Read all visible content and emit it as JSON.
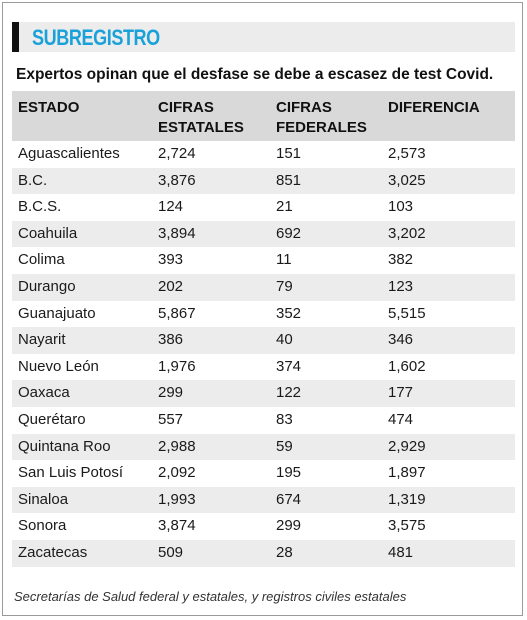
{
  "banner": {
    "title": "SUBREGISTRO"
  },
  "headline": "Expertos opinan que el desfase se debe a escasez de test Covid.",
  "table": {
    "headers": [
      "ESTADO",
      "CIFRAS ESTATALES",
      "CIFRAS FEDERALES",
      "DIFERENCIA"
    ],
    "rows": [
      [
        "Aguascalientes",
        "2,724",
        "151",
        "2,573"
      ],
      [
        "B.C.",
        "3,876",
        "851",
        "3,025"
      ],
      [
        "B.C.S.",
        "124",
        "21",
        "103"
      ],
      [
        "Coahuila",
        "3,894",
        "692",
        "3,202"
      ],
      [
        "Colima",
        "393",
        "11",
        "382"
      ],
      [
        "Durango",
        "202",
        "79",
        "123"
      ],
      [
        "Guanajuato",
        "5,867",
        "352",
        "5,515"
      ],
      [
        "Nayarit",
        "386",
        "40",
        "346"
      ],
      [
        "Nuevo León",
        "1,976",
        "374",
        "1,602"
      ],
      [
        "Oaxaca",
        "299",
        "122",
        "177"
      ],
      [
        "Querétaro",
        "557",
        "83",
        "474"
      ],
      [
        "Quintana Roo",
        "2,988",
        "59",
        "2,929"
      ],
      [
        "San Luis Potosí",
        "2,092",
        "195",
        "1,897"
      ],
      [
        "Sinaloa",
        "1,993",
        "674",
        "1,319"
      ],
      [
        "Sonora",
        "3,874",
        "299",
        "3,575"
      ],
      [
        "Zacatecas",
        "509",
        "28",
        "481"
      ]
    ]
  },
  "source": "Secretarías de Salud federal y estatales, y registros civiles estatales",
  "colors": {
    "accent": "#1aa1da",
    "header_bg": "#d9d9d9",
    "stripe_bg": "#ececec"
  }
}
